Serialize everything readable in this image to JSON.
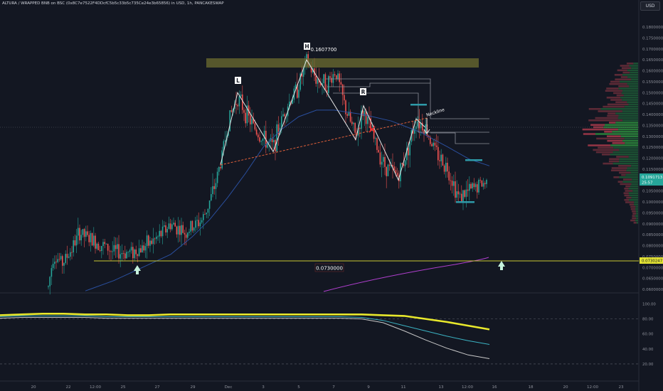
{
  "header": {
    "title": "ALTURA / WRAPPED BNB on BSC (0x8C7e7522F4DDcfC5b5c33b5c735Ce24e3b65856) in USD, 1h, PANCAKESWAP",
    "currency": "USD"
  },
  "chart_data": [
    {
      "type": "candlestick",
      "symbol": "ALTURA / WRAPPED BNB",
      "interval": "1h",
      "price_axis_labels": [
        "0.1800000",
        "0.1750000",
        "0.1700000",
        "0.1650000",
        "0.1600000",
        "0.1550000",
        "0.1500000",
        "0.1450000",
        "0.1400000",
        "0.1350000",
        "0.1300000",
        "0.1250000",
        "0.1200000",
        "0.1150000",
        "0.1100000",
        "0.1050000",
        "0.1000000",
        "0.0950000",
        "0.0900000",
        "0.0850000",
        "0.0800000",
        "0.0750000",
        "0.0700000",
        "0.0650000",
        "0.0600000"
      ],
      "ylim": [
        0.0593,
        0.1815
      ],
      "time_axis_labels": [
        "20",
        "22",
        "12:00",
        "25",
        "27",
        "29",
        "Dec",
        "3",
        "5",
        "7",
        "9",
        "11",
        "13",
        "12:00",
        "16",
        "18",
        "20",
        "12:00",
        "23"
      ],
      "last_price": "0.1091713",
      "countdown": "25:57",
      "crosshair_price": "0.0730247",
      "annotations": {
        "head_label": "H",
        "head_value": "0.1607700",
        "left_shoulder": "L",
        "right_shoulder": "R",
        "neckline": "Neckline",
        "support_value": "0.0730000"
      },
      "pattern_points": [
        {
          "t": "27.2",
          "p": 0.117
        },
        {
          "t": "29.6",
          "p": 0.15
        },
        {
          "t": "2.4",
          "p": 0.123
        },
        {
          "t": "5.6",
          "p": 0.165
        },
        {
          "t": "8.2",
          "p": 0.1285
        },
        {
          "t": "9.0",
          "p": 0.144
        },
        {
          "t": "10.3",
          "p": 0.11
        },
        {
          "t": "11.7",
          "p": 0.138
        },
        {
          "t": "12.5",
          "p": 0.134
        }
      ],
      "colors": {
        "up": "#26a69a",
        "down": "#ef5350",
        "ema": "#2a4f9e",
        "ma_long": "#b03fcf",
        "support": "#c8c832",
        "resistance_zone": "#7a7a36",
        "volume_up": "#2e8b3d",
        "volume_down": "#c24a5a"
      }
    },
    {
      "type": "line",
      "name": "oscillator",
      "axis_labels": [
        "100.00",
        "80.00",
        "60.00",
        "40.00",
        "20.00"
      ],
      "ylim": [
        0,
        110
      ],
      "series": [
        {
          "color": "#e8e82c",
          "values": [
            85,
            86,
            87,
            87,
            86,
            86,
            85,
            85,
            86,
            86,
            86,
            86,
            86,
            86,
            86,
            86,
            86,
            86,
            85,
            84,
            80,
            76,
            71,
            66
          ]
        },
        {
          "color": "#3bb3c3",
          "values": [
            83,
            84,
            84,
            84,
            84,
            83,
            83,
            83,
            83,
            83,
            83,
            83,
            83,
            83,
            83,
            83,
            83,
            82,
            78,
            71,
            64,
            57,
            51,
            46
          ]
        },
        {
          "color": "#c8c8c8",
          "values": [
            81,
            82,
            82,
            82,
            82,
            81,
            81,
            81,
            81,
            81,
            81,
            81,
            81,
            81,
            81,
            81,
            81,
            80,
            75,
            64,
            52,
            41,
            32,
            27
          ]
        }
      ]
    }
  ]
}
